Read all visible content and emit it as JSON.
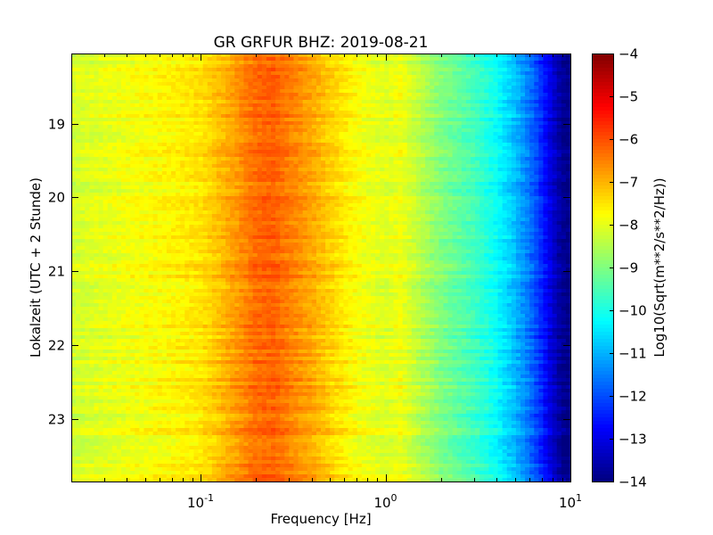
{
  "chart_data": {
    "type": "heatmap",
    "title": "GR GRFUR BHZ: 2019-08-21",
    "xlabel": "Frequency [Hz]",
    "ylabel": "Lokalzeit (UTC + 2 Stunde)",
    "x_scale": "log",
    "xlim": [
      0.02,
      10
    ],
    "x_ticks": [
      {
        "value": 0.1,
        "base": "10",
        "exp": "-1"
      },
      {
        "value": 1,
        "base": "10",
        "exp": "0"
      },
      {
        "value": 10,
        "base": "10",
        "exp": "1"
      }
    ],
    "ylim": [
      18.05,
      23.85
    ],
    "y_inverted": true,
    "y_ticks": [
      {
        "value": 19,
        "label": "19"
      },
      {
        "value": 20,
        "label": "20"
      },
      {
        "value": 21,
        "label": "21"
      },
      {
        "value": 22,
        "label": "22"
      },
      {
        "value": 23,
        "label": "23"
      }
    ],
    "colorbar": {
      "label": "Log10(Sqrt(m**2/s**2/Hz))",
      "range": [
        -14,
        -4
      ],
      "colormap": "jet",
      "ticks": [
        {
          "value": -4,
          "label": "−4"
        },
        {
          "value": -5,
          "label": "−5"
        },
        {
          "value": -6,
          "label": "−6"
        },
        {
          "value": -7,
          "label": "−7"
        },
        {
          "value": -8,
          "label": "−8"
        },
        {
          "value": -9,
          "label": "−9"
        },
        {
          "value": -10,
          "label": "−10"
        },
        {
          "value": -11,
          "label": "−11"
        },
        {
          "value": -12,
          "label": "−12"
        },
        {
          "value": -13,
          "label": "−13"
        },
        {
          "value": -14,
          "label": "−14"
        }
      ]
    },
    "spectrum_profile": {
      "frequency_hz": [
        0.02,
        0.04,
        0.07,
        0.1,
        0.13,
        0.17,
        0.2,
        0.25,
        0.3,
        0.4,
        0.5,
        0.7,
        1.0,
        1.2,
        1.5,
        2.0,
        3.0,
        4.0,
        5.0,
        6.0,
        7.0,
        8.0,
        9.0,
        10.0
      ],
      "log10_amplitude": [
        -8.2,
        -7.9,
        -7.7,
        -7.5,
        -7.1,
        -6.6,
        -6.3,
        -6.2,
        -6.5,
        -6.9,
        -7.3,
        -7.8,
        -8.1,
        -7.9,
        -8.4,
        -9.0,
        -9.6,
        -10.2,
        -10.9,
        -11.6,
        -12.4,
        -13.2,
        -13.8,
        -14.0
      ]
    },
    "rows": 120
  }
}
